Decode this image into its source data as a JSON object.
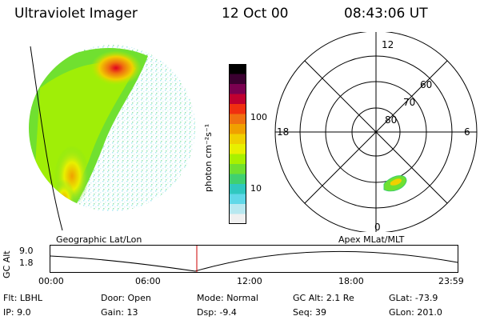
{
  "header": {
    "instrument": "Ultraviolet Imager",
    "date": "12 Oct 00",
    "time": "08:43:06 UT"
  },
  "colorbar": {
    "unit_label": "photon cm⁻²s⁻¹",
    "ticks": [
      "100",
      "10"
    ],
    "colors": [
      "#000000",
      "#3a0030",
      "#7a0050",
      "#c00030",
      "#f03010",
      "#f07010",
      "#f0a000",
      "#f0d000",
      "#e8f000",
      "#a8f000",
      "#70e030",
      "#40d070",
      "#30c8c0",
      "#60d8e8",
      "#b8e8f0",
      "#f0f0f0"
    ]
  },
  "polar_plot": {
    "rings": [
      "80",
      "70",
      "60"
    ],
    "mlt_labels": {
      "top": "12",
      "left": "18",
      "right": "6",
      "bottom": "0"
    }
  },
  "left_caption": "Geographic Lat/Lon",
  "right_caption": "Apex MLat/MLT",
  "orbit_plot": {
    "axis_label": "GC Alt",
    "y_ticks": [
      "9.0",
      "1.8"
    ],
    "x_ticks": [
      "00:00",
      "06:00",
      "12:00",
      "18:00",
      "23:59"
    ],
    "marker_color": "#cc0000"
  },
  "footer": [
    {
      "label": "Flt:",
      "value": "LBHL"
    },
    {
      "label": "IP:",
      "value": "9.0"
    },
    {
      "label": "Door:",
      "value": "Open"
    },
    {
      "label": "Gain:",
      "value": "13"
    },
    {
      "label": "Mode:",
      "value": "Normal"
    },
    {
      "label": "Dsp:",
      "value": "-9.4"
    },
    {
      "label": "GC Alt:",
      "value": "2.1 Re"
    },
    {
      "label": "Seq:",
      "value": "39"
    },
    {
      "label": "GLat:",
      "value": "-73.9"
    },
    {
      "label": "GLon:",
      "value": "201.0"
    }
  ]
}
